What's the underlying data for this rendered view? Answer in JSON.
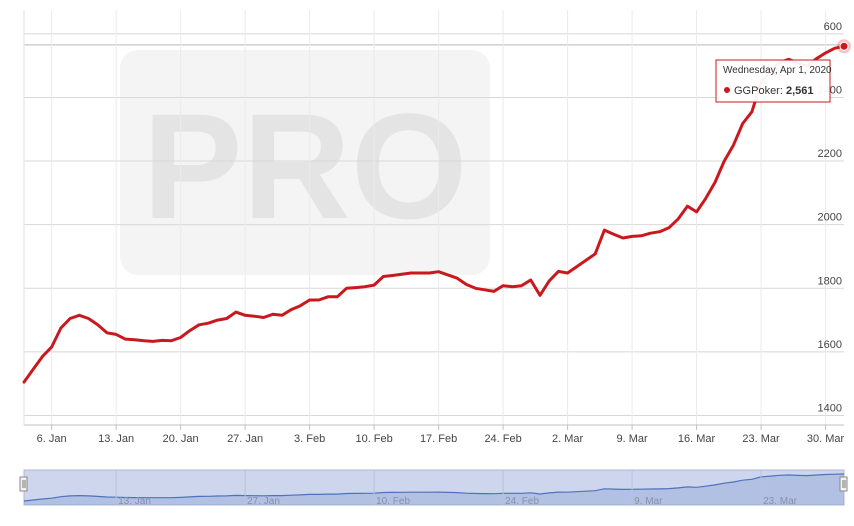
{
  "chart_data": {
    "type": "line",
    "title": "",
    "xlabel": "",
    "ylabel": "",
    "ylim": [
      1370,
      2675
    ],
    "yticks": [
      1400,
      1600,
      1800,
      2000,
      2200,
      2400
    ],
    "y_top_label": "600",
    "x_ticks": [
      "6. Jan",
      "13. Jan",
      "20. Jan",
      "27. Jan",
      "3. Feb",
      "10. Feb",
      "17. Feb",
      "24. Feb",
      "2. Mar",
      "9. Mar",
      "16. Mar",
      "23. Mar",
      "30. Mar"
    ],
    "navigator_ticks": [
      "13. Jan",
      "27. Jan",
      "10. Feb",
      "24. Feb",
      "9. Mar",
      "23. Mar"
    ],
    "grid": true,
    "line_color": "#c9191e",
    "watermark": "PRO",
    "series": [
      {
        "name": "GGPoker",
        "x": [
          "2020-01-03",
          "2020-01-04",
          "2020-01-05",
          "2020-01-06",
          "2020-01-07",
          "2020-01-08",
          "2020-01-09",
          "2020-01-10",
          "2020-01-11",
          "2020-01-12",
          "2020-01-13",
          "2020-01-14",
          "2020-01-15",
          "2020-01-16",
          "2020-01-17",
          "2020-01-18",
          "2020-01-19",
          "2020-01-20",
          "2020-01-21",
          "2020-01-22",
          "2020-01-23",
          "2020-01-24",
          "2020-01-25",
          "2020-01-26",
          "2020-01-27",
          "2020-01-28",
          "2020-01-29",
          "2020-01-30",
          "2020-01-31",
          "2020-02-01",
          "2020-02-02",
          "2020-02-03",
          "2020-02-04",
          "2020-02-05",
          "2020-02-06",
          "2020-02-07",
          "2020-02-08",
          "2020-02-09",
          "2020-02-10",
          "2020-02-11",
          "2020-02-12",
          "2020-02-13",
          "2020-02-14",
          "2020-02-15",
          "2020-02-16",
          "2020-02-17",
          "2020-02-18",
          "2020-02-19",
          "2020-02-20",
          "2020-02-21",
          "2020-02-22",
          "2020-02-23",
          "2020-02-24",
          "2020-02-25",
          "2020-02-26",
          "2020-02-27",
          "2020-02-28",
          "2020-02-29",
          "2020-03-01",
          "2020-03-02",
          "2020-03-03",
          "2020-03-04",
          "2020-03-05",
          "2020-03-06",
          "2020-03-07",
          "2020-03-08",
          "2020-03-09",
          "2020-03-10",
          "2020-03-11",
          "2020-03-12",
          "2020-03-13",
          "2020-03-14",
          "2020-03-15",
          "2020-03-16",
          "2020-03-17",
          "2020-03-18",
          "2020-03-19",
          "2020-03-20",
          "2020-03-21",
          "2020-03-22",
          "2020-03-23",
          "2020-03-24",
          "2020-03-25",
          "2020-03-26",
          "2020-03-27",
          "2020-03-28",
          "2020-03-29",
          "2020-03-30",
          "2020-03-31",
          "2020-04-01"
        ],
        "values": [
          1505,
          1545,
          1585,
          1615,
          1675,
          1705,
          1715,
          1705,
          1685,
          1660,
          1655,
          1640,
          1638,
          1635,
          1633,
          1636,
          1635,
          1645,
          1667,
          1685,
          1690,
          1700,
          1705,
          1725,
          1715,
          1712,
          1708,
          1718,
          1715,
          1733,
          1745,
          1763,
          1763,
          1773,
          1773,
          1800,
          1802,
          1805,
          1810,
          1837,
          1840,
          1844,
          1848,
          1848,
          1848,
          1852,
          1842,
          1832,
          1812,
          1800,
          1795,
          1790,
          1808,
          1805,
          1808,
          1826,
          1778,
          1823,
          1853,
          1848,
          1868,
          1888,
          1908,
          1983,
          1970,
          1958,
          1963,
          1965,
          1973,
          1978,
          1990,
          2018,
          2058,
          2040,
          2083,
          2133,
          2200,
          2250,
          2318,
          2355,
          2448,
          2480,
          2510,
          2520,
          2508,
          2498,
          2522,
          2540,
          2555,
          2561
        ]
      }
    ],
    "tooltip": {
      "date": "Wednesday, Apr 1, 2020",
      "series": "GGPoker",
      "value": "2,561"
    }
  }
}
